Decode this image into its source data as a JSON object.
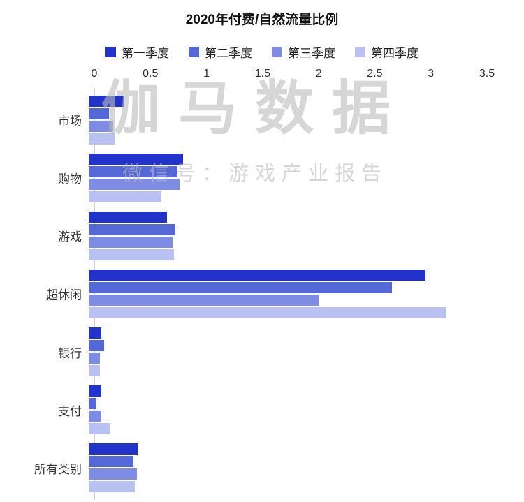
{
  "title": "2020年付费/自然流量比例",
  "watermark": {
    "main": "伽马数据",
    "sub": "微信号：游戏产业报告"
  },
  "colors": {
    "q1": "#2133cb",
    "q2": "#5568d8",
    "q3": "#7e8ce4",
    "q4": "#b8c1f1",
    "axis_line": "#cfcfcf"
  },
  "chart_data": {
    "type": "bar",
    "orientation": "horizontal",
    "title": "2020年付费/自然流量比例",
    "categories": [
      "市场",
      "购物",
      "游戏",
      "超休闲",
      "银行",
      "支付",
      "所有类别"
    ],
    "series": [
      {
        "name": "第一季度",
        "color": "#2133cb",
        "values": [
          0.32,
          0.84,
          0.7,
          3.0,
          0.11,
          0.11,
          0.44
        ]
      },
      {
        "name": "第二季度",
        "color": "#5568d8",
        "values": [
          0.18,
          0.79,
          0.77,
          2.7,
          0.14,
          0.07,
          0.4
        ]
      },
      {
        "name": "第三季度",
        "color": "#7e8ce4",
        "values": [
          0.22,
          0.81,
          0.75,
          2.05,
          0.1,
          0.11,
          0.43
        ]
      },
      {
        "name": "第四季度",
        "color": "#b8c1f1",
        "values": [
          0.23,
          0.65,
          0.76,
          3.19,
          0.1,
          0.19,
          0.41
        ]
      }
    ],
    "x_ticks": [
      "0",
      "0.5",
      "1",
      "1.5",
      "2",
      "2.5",
      "3",
      "3.5"
    ],
    "xlim": [
      0,
      3.5
    ],
    "legend_position": "top",
    "axis_position": "top",
    "grid": false
  }
}
